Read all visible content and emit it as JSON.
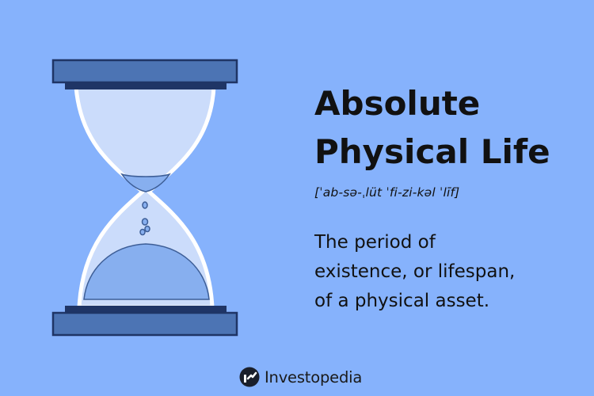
{
  "term": {
    "title_line1": "Absolute",
    "title_line2": "Physical Life",
    "pronunciation": "[ˈab-sə-ˌlüt ˈfi-zi-kəl ˈlīf]",
    "definition_line1": "The period of",
    "definition_line2": "existence, or lifespan,",
    "definition_line3": "of a physical asset."
  },
  "brand": {
    "name": "Investopedia",
    "logo_icon": "investopedia-logo-icon"
  },
  "illustration": {
    "icon": "hourglass-icon"
  },
  "colors": {
    "background": "#86b2fc",
    "frame": "#4c74b4",
    "frame_dark": "#1f3566",
    "glass": "#cbdcfb",
    "sand": "#87afef",
    "text": "#111111"
  }
}
